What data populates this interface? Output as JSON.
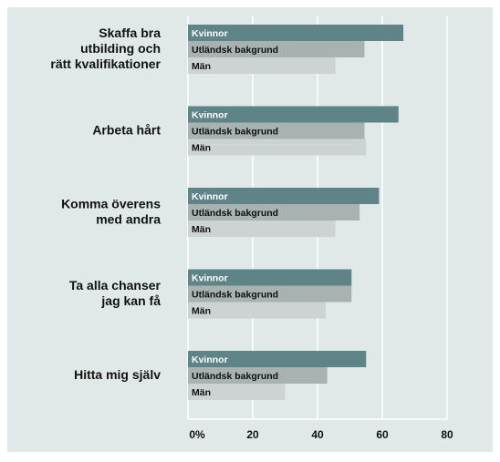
{
  "chart_data": {
    "type": "hbar",
    "categories": [
      "Skaffa bra\nutbilding och\nrätt kvalifikationer",
      "Arbeta hårt",
      "Komma överens\nmed andra",
      "Ta alla chanser\njag kan få",
      "Hitta mig själv"
    ],
    "series": [
      {
        "name": "Kvinnor",
        "color": "#5f8487",
        "values": [
          66.5,
          65,
          59,
          50.5,
          55
        ]
      },
      {
        "name": "Utländsk bakgrund",
        "color": "#a8b2b1",
        "values": [
          54.5,
          54.5,
          53,
          50.5,
          43
        ]
      },
      {
        "name": "Män",
        "color": "#cdd3d2",
        "values": [
          45.5,
          55,
          45.5,
          42.5,
          30
        ]
      }
    ],
    "xlim": [
      0,
      80
    ],
    "xticks": [
      {
        "value": 0,
        "label": "0%"
      },
      20,
      40,
      60,
      80
    ],
    "grid": true
  }
}
